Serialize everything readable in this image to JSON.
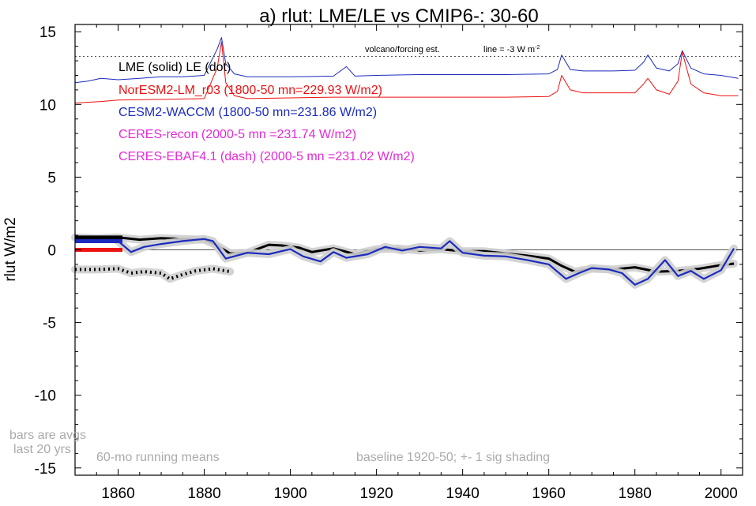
{
  "chart_data": {
    "type": "line",
    "title": "a) rlut: LME/LE vs CMIP6-: 30-60",
    "ylabel": "rlut W/m2",
    "xlabel": "",
    "xlim": [
      1850,
      2005
    ],
    "ylim": [
      -15.5,
      15.5
    ],
    "xticks": [
      1860,
      1880,
      1900,
      1920,
      1940,
      1960,
      1980,
      2000
    ],
    "yticks": [
      -15,
      -10,
      -5,
      0,
      5,
      10,
      15
    ],
    "zero_line": true,
    "legend": [
      {
        "text": "LME (solid)   LE (dot)",
        "color": "#000000"
      },
      {
        "text": "NorESM2-LM_r03 (1800-50 mn=229.93 W/m2)",
        "color": "#ee1111"
      },
      {
        "text": "CESM2-WACCM (1800-50 mn=231.86 W/m2)",
        "color": "#1b2bbd"
      },
      {
        "text": "CERES-recon (2000-5 mn =231.74 W/m2)",
        "color": "#e52ad6"
      },
      {
        "text": "CERES-EBAF4.1 (dash) (2000-5 mn =231.02 W/m2)",
        "color": "#e52ad6"
      }
    ],
    "annotations": {
      "volcano": "volcano/forcing est.",
      "line_note": "line = -3 W m",
      "line_note_sup": "-2",
      "bars_note_1": "bars are avgs",
      "bars_note_2": "last 20 yrs",
      "running_means": "60-mo running means",
      "baseline": "baseline 1920-50; +- 1 sig shading"
    },
    "dotted_reference_y": 13.3,
    "series": [
      {
        "name": "LME (solid)",
        "color": "#000000",
        "style": "solid",
        "x": [
          1850,
          1855,
          1860,
          1865,
          1870,
          1875,
          1880,
          1883,
          1886,
          1890,
          1895,
          1898,
          1902,
          1905,
          1910,
          1915,
          1920,
          1925,
          1930,
          1935,
          1940,
          1945,
          1950,
          1955,
          1960,
          1963,
          1966,
          1970,
          1975,
          1980,
          1985,
          1990,
          1995,
          2000,
          2003
        ],
        "y": [
          0.85,
          0.8,
          0.85,
          0.7,
          0.8,
          0.75,
          0.7,
          0.3,
          -0.25,
          -0.2,
          0.35,
          0.3,
          0.15,
          -0.15,
          0.1,
          -0.3,
          0.05,
          0.1,
          -0.05,
          0.05,
          -0.1,
          -0.1,
          -0.25,
          -0.4,
          -0.6,
          -1.1,
          -1.5,
          -1.3,
          -1.35,
          -1.2,
          -1.5,
          -1.45,
          -1.3,
          -1.05,
          -0.95
        ]
      },
      {
        "name": "LE (dot)",
        "color": "#000000",
        "style": "dot",
        "x": [
          1850,
          1855,
          1860,
          1863,
          1866,
          1870,
          1872,
          1875,
          1878,
          1882,
          1886
        ],
        "y": [
          -1.35,
          -1.35,
          -1.3,
          -1.6,
          -1.5,
          -1.6,
          -2.0,
          -1.7,
          -1.45,
          -1.3,
          -1.5
        ]
      },
      {
        "name": "CESM2-WACCM",
        "color": "#1b2bbd",
        "style": "solid",
        "x": [
          1860,
          1863,
          1866,
          1870,
          1875,
          1880,
          1882,
          1885,
          1890,
          1895,
          1900,
          1903,
          1907,
          1910,
          1913,
          1918,
          1922,
          1926,
          1930,
          1935,
          1937,
          1940,
          1945,
          1950,
          1955,
          1960,
          1964,
          1967,
          1970,
          1974,
          1977,
          1980,
          1983,
          1987,
          1990,
          1993,
          1996,
          2000,
          2003
        ],
        "y": [
          0.6,
          -0.15,
          0.2,
          0.4,
          0.6,
          0.75,
          0.6,
          -0.6,
          -0.2,
          -0.3,
          0.05,
          -0.45,
          -0.8,
          -0.15,
          -0.55,
          -0.3,
          0.2,
          -0.05,
          0.2,
          0.1,
          0.6,
          -0.2,
          -0.4,
          -0.45,
          -0.7,
          -1.0,
          -2.0,
          -1.6,
          -1.25,
          -1.35,
          -1.6,
          -2.4,
          -2.0,
          -0.7,
          -1.8,
          -1.45,
          -2.0,
          -1.4,
          0.1
        ]
      }
    ],
    "upper_series": [
      {
        "name": "CESM2-WACCM forcing",
        "color": "#1b2bbd",
        "x": [
          1850,
          1853,
          1856,
          1860,
          1865,
          1870,
          1875,
          1880,
          1883,
          1884,
          1885,
          1887,
          1890,
          1900,
          1910,
          1913,
          1915,
          1920,
          1930,
          1940,
          1950,
          1960,
          1962,
          1963,
          1965,
          1968,
          1975,
          1980,
          1982,
          1983,
          1985,
          1988,
          1990,
          1991,
          1993,
          1996,
          2000,
          2004
        ],
        "y": [
          11.5,
          11.6,
          11.8,
          11.7,
          11.8,
          11.9,
          11.9,
          12.0,
          13.8,
          14.6,
          12.8,
          12.1,
          11.9,
          11.9,
          11.95,
          12.6,
          11.95,
          12.0,
          12.05,
          12.05,
          12.05,
          12.1,
          12.4,
          13.4,
          12.4,
          12.3,
          12.3,
          12.35,
          12.9,
          13.4,
          12.5,
          12.3,
          12.8,
          13.7,
          12.5,
          12.1,
          12.0,
          11.8
        ]
      },
      {
        "name": "NorESM2-LM forcing",
        "color": "#ee1111",
        "x": [
          1850,
          1856,
          1860,
          1870,
          1880,
          1883,
          1884,
          1885,
          1887,
          1890,
          1900,
          1910,
          1920,
          1930,
          1940,
          1950,
          1960,
          1962,
          1963,
          1965,
          1968,
          1975,
          1980,
          1982,
          1983,
          1985,
          1988,
          1990,
          1991,
          1993,
          1996,
          2000,
          2004
        ],
        "y": [
          10.1,
          10.2,
          10.3,
          10.35,
          10.4,
          12.5,
          14.3,
          11.5,
          10.6,
          10.4,
          10.45,
          10.5,
          10.5,
          10.5,
          10.5,
          10.5,
          10.55,
          10.9,
          12.0,
          11.0,
          10.8,
          10.8,
          10.8,
          11.4,
          11.8,
          11.0,
          10.7,
          11.6,
          13.6,
          11.4,
          10.8,
          10.6,
          10.6
        ]
      }
    ],
    "bars": [
      {
        "series": "LME",
        "color": "#000000",
        "x": [
          1850,
          1861
        ],
        "y": 0.85
      },
      {
        "series": "CESM2-WACCM",
        "color": "#1b2bbd",
        "x": [
          1850,
          1861
        ],
        "y": 0.6
      },
      {
        "series": "NorESM2-LM",
        "color": "#ee1111",
        "x": [
          1850,
          1861
        ],
        "y": 0.0
      }
    ]
  }
}
